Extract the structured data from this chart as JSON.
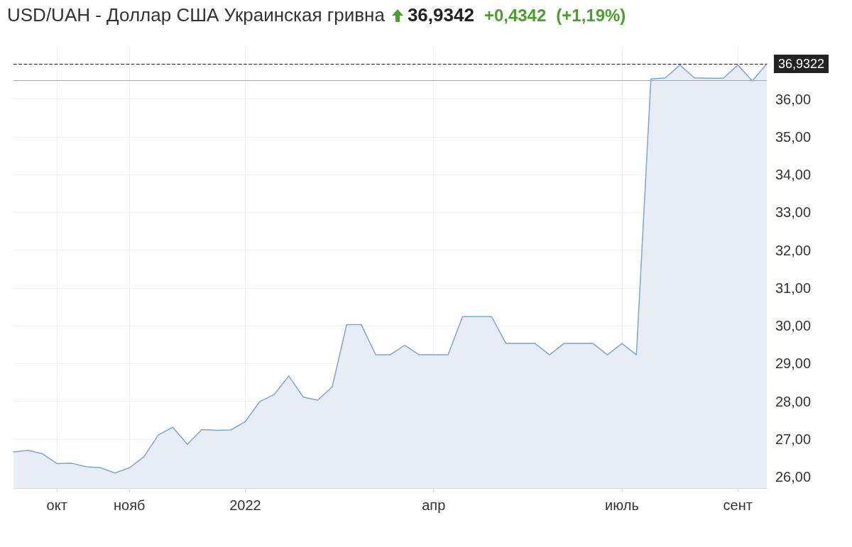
{
  "chart_data": {
    "type": "area",
    "title": "USD/UAH - Доллар США Украинская гривна",
    "annotations": [
      "36,9342",
      "+0,4342",
      "(+1,19%)"
    ],
    "categories": [
      null,
      null,
      null,
      "окт",
      null,
      null,
      null,
      null,
      "нояб",
      null,
      null,
      null,
      null,
      null,
      null,
      null,
      "2022",
      null,
      null,
      null,
      null,
      null,
      null,
      null,
      null,
      null,
      null,
      null,
      null,
      "апр",
      null,
      null,
      null,
      null,
      null,
      null,
      null,
      null,
      null,
      null,
      null,
      null,
      "июль",
      null,
      null,
      null,
      null,
      null,
      null,
      null,
      "сент",
      null,
      null
    ],
    "series": [
      {
        "color": "#7aa7d6",
        "values": [
          26.66,
          26.7,
          26.61,
          26.35,
          26.36,
          26.27,
          26.24,
          26.1,
          26.24,
          26.53,
          27.11,
          27.31,
          26.86,
          27.25,
          27.23,
          27.24,
          27.46,
          27.99,
          28.18,
          28.67,
          28.11,
          28.03,
          28.38,
          30.03,
          30.03,
          29.23,
          29.23,
          29.48,
          29.23,
          29.23,
          29.23,
          30.24,
          30.24,
          30.24,
          29.53,
          29.53,
          29.53,
          29.23,
          29.53,
          29.53,
          29.53,
          29.23,
          29.53,
          29.23,
          36.53,
          36.56,
          36.9,
          36.56,
          36.55,
          36.55,
          36.9,
          36.48,
          36.93
        ]
      }
    ],
    "ylim": [
      25.7,
      37.4
    ],
    "yticks": [
      {
        "value": 26,
        "label": "26,00"
      },
      {
        "value": 27,
        "label": "27,00"
      },
      {
        "value": 28,
        "label": "28,00"
      },
      {
        "value": 29,
        "label": "29,00"
      },
      {
        "value": 30,
        "label": "30,00"
      },
      {
        "value": 31,
        "label": "31,00"
      },
      {
        "value": 32,
        "label": "32,00"
      },
      {
        "value": 33,
        "label": "33,00"
      },
      {
        "value": 34,
        "label": "34,00"
      },
      {
        "value": 35,
        "label": "35,00"
      },
      {
        "value": 36,
        "label": "36,00"
      }
    ],
    "ref_lines": [
      {
        "axis": "y",
        "value": 36.9322,
        "label": "36,9322",
        "color": "#222222",
        "line_style": "dashed"
      },
      {
        "axis": "y",
        "value": 36.5,
        "color": "#e88a8a",
        "line_style": "solid"
      }
    ],
    "grid": true,
    "marker": "none",
    "line_style": "solid"
  }
}
